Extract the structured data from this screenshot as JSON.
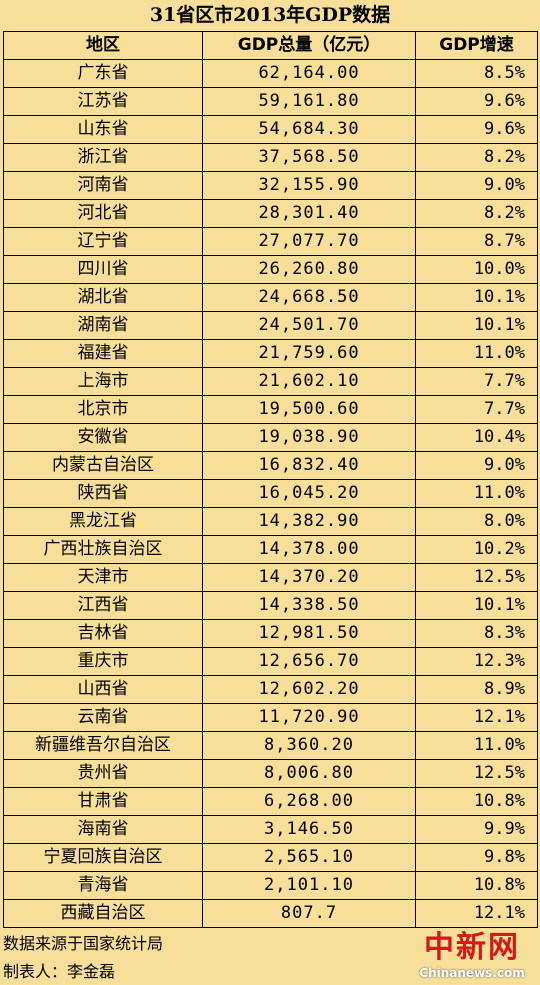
{
  "title": "31省区市2013年GDP数据",
  "headers": {
    "region": "地区",
    "gdp": "GDP总量（亿元）",
    "growth": "GDP增速"
  },
  "rows": [
    {
      "region": "广东省",
      "gdp": "62,164.00",
      "growth": "8.5%"
    },
    {
      "region": "江苏省",
      "gdp": "59,161.80",
      "growth": "9.6%"
    },
    {
      "region": "山东省",
      "gdp": "54,684.30",
      "growth": "9.6%"
    },
    {
      "region": "浙江省",
      "gdp": "37,568.50",
      "growth": "8.2%"
    },
    {
      "region": "河南省",
      "gdp": "32,155.90",
      "growth": "9.0%"
    },
    {
      "region": "河北省",
      "gdp": "28,301.40",
      "growth": "8.2%"
    },
    {
      "region": "辽宁省",
      "gdp": "27,077.70",
      "growth": "8.7%"
    },
    {
      "region": "四川省",
      "gdp": "26,260.80",
      "growth": "10.0%"
    },
    {
      "region": "湖北省",
      "gdp": "24,668.50",
      "growth": "10.1%"
    },
    {
      "region": "湖南省",
      "gdp": "24,501.70",
      "growth": "10.1%"
    },
    {
      "region": "福建省",
      "gdp": "21,759.60",
      "growth": "11.0%"
    },
    {
      "region": "上海市",
      "gdp": "21,602.10",
      "growth": "7.7%"
    },
    {
      "region": "北京市",
      "gdp": "19,500.60",
      "growth": "7.7%"
    },
    {
      "region": "安徽省",
      "gdp": "19,038.90",
      "growth": "10.4%"
    },
    {
      "region": "内蒙古自治区",
      "gdp": "16,832.40",
      "growth": "9.0%"
    },
    {
      "region": "陕西省",
      "gdp": "16,045.20",
      "growth": "11.0%"
    },
    {
      "region": "黑龙江省",
      "gdp": "14,382.90",
      "growth": "8.0%"
    },
    {
      "region": "广西壮族自治区",
      "gdp": "14,378.00",
      "growth": "10.2%"
    },
    {
      "region": "天津市",
      "gdp": "14,370.20",
      "growth": "12.5%"
    },
    {
      "region": "江西省",
      "gdp": "14,338.50",
      "growth": "10.1%"
    },
    {
      "region": "吉林省",
      "gdp": "12,981.50",
      "growth": "8.3%"
    },
    {
      "region": "重庆市",
      "gdp": "12,656.70",
      "growth": "12.3%"
    },
    {
      "region": "山西省",
      "gdp": "12,602.20",
      "growth": "8.9%"
    },
    {
      "region": "云南省",
      "gdp": "11,720.90",
      "growth": "12.1%"
    },
    {
      "region": "新疆维吾尔自治区",
      "gdp": "8,360.20",
      "growth": "11.0%"
    },
    {
      "region": "贵州省",
      "gdp": "8,006.80",
      "growth": "12.5%"
    },
    {
      "region": "甘肃省",
      "gdp": "6,268.00",
      "growth": "10.8%"
    },
    {
      "region": "海南省",
      "gdp": "3,146.50",
      "growth": "9.9%"
    },
    {
      "region": "宁夏回族自治区",
      "gdp": "2,565.10",
      "growth": "9.8%"
    },
    {
      "region": "青海省",
      "gdp": "2,101.10",
      "growth": "10.8%"
    },
    {
      "region": "西藏自治区",
      "gdp": "807.7",
      "growth": "12.1%"
    }
  ],
  "footer": {
    "source": "数据来源于国家统计局",
    "author": "制表人：李金磊"
  },
  "watermark": {
    "cn": "中新网",
    "en": "Chinanews.com"
  },
  "colors": {
    "background": "#f7df9a",
    "watermark_red": "#d21a1a"
  }
}
